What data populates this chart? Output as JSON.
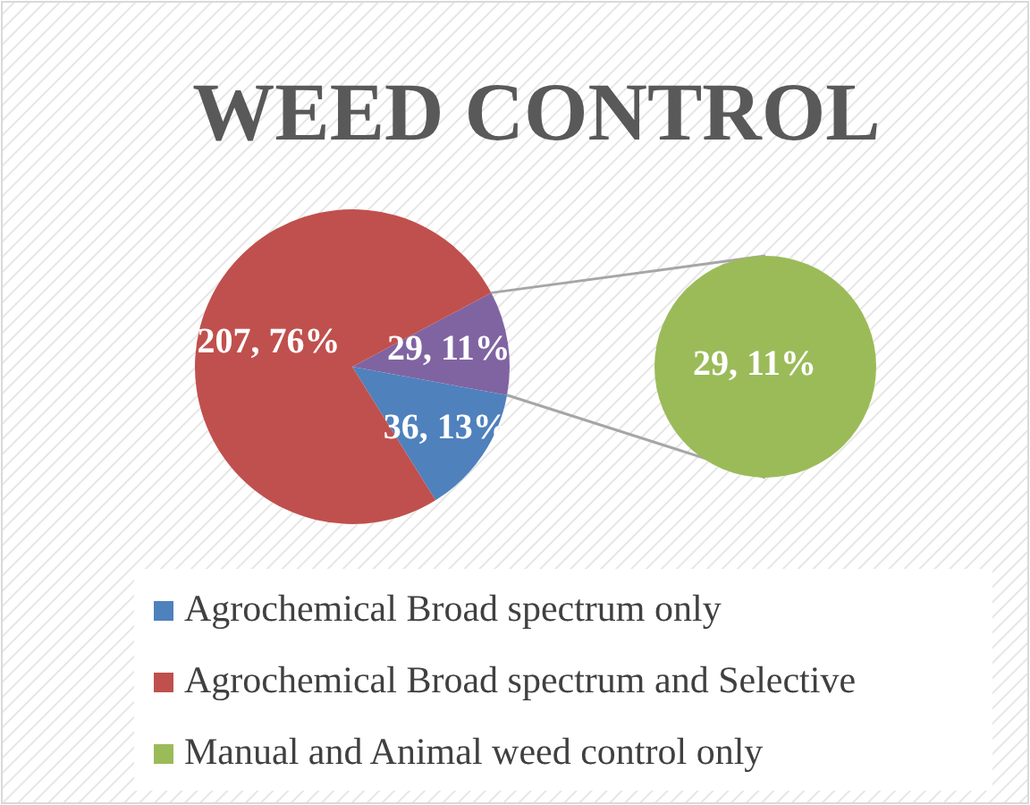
{
  "chart_data": [
    {
      "type": "pie",
      "title": "WEED CONTROL",
      "categories": [
        "Agrochemical Broad spectrum only",
        "Agrochemical Broad spectrum and Selective",
        null
      ],
      "values": [
        36,
        207,
        29
      ],
      "colors": [
        "#4f81bd",
        "#c0504d",
        "#8064a2"
      ],
      "value_labels": [
        "36, 13%",
        "207, 76%",
        "29, 11%"
      ],
      "legend": "bottom"
    },
    {
      "type": "pie",
      "categories": [
        "Manual and Animal weed control only"
      ],
      "values": [
        29
      ],
      "colors": [
        "#9bbb59"
      ],
      "value_labels": [
        "29, 11%"
      ],
      "legend": "bottom"
    }
  ]
}
